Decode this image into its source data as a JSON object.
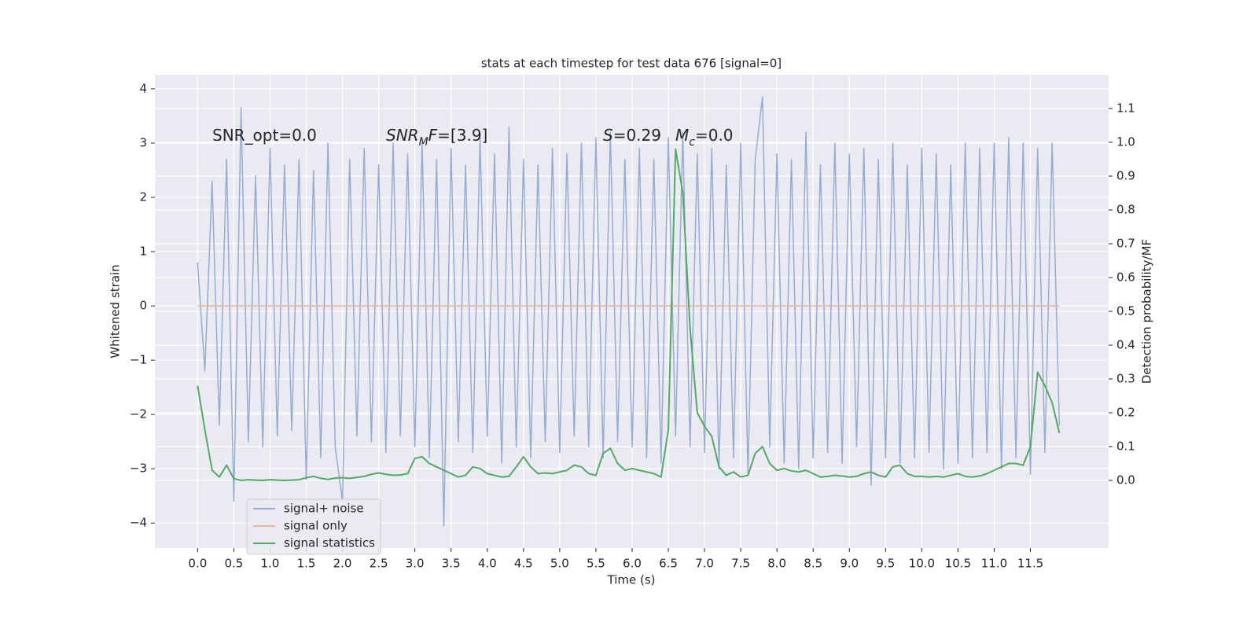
{
  "chart_data": {
    "type": "line",
    "title": "stats at each timestep for test data 676 [signal=0]",
    "x_label": "Time (s)",
    "y_label": "Whitened strain",
    "y2_label": "Detection probability/MF",
    "annotations": [
      [
        {
          "text": "SNR_opt=0.0"
        }
      ],
      [
        {
          "text": "SNR",
          "italic": true
        },
        {
          "text": "M",
          "italic": true,
          "sub": true
        },
        {
          "text": "F",
          "italic": true
        },
        {
          "text": "=[3.9]"
        }
      ],
      [
        {
          "text": "S",
          "italic": true
        },
        {
          "text": "=0.29"
        }
      ],
      [
        {
          "text": "M",
          "italic": true
        },
        {
          "text": "c",
          "italic": true,
          "sub": true
        },
        {
          "text": "=0.0"
        }
      ]
    ],
    "x": [
      0.0,
      0.1,
      0.2,
      0.3,
      0.4,
      0.5,
      0.6,
      0.7,
      0.8,
      0.9,
      1.0,
      1.1,
      1.2,
      1.3,
      1.4,
      1.5,
      1.6,
      1.7,
      1.8,
      1.9,
      2.0,
      2.1,
      2.2,
      2.3,
      2.4,
      2.5,
      2.6,
      2.7,
      2.8,
      2.9,
      3.0,
      3.1,
      3.2,
      3.3,
      3.4,
      3.5,
      3.6,
      3.7,
      3.8,
      3.9,
      4.0,
      4.1,
      4.2,
      4.3,
      4.4,
      4.5,
      4.6,
      4.7,
      4.8,
      4.9,
      5.0,
      5.1,
      5.2,
      5.3,
      5.4,
      5.5,
      5.6,
      5.7,
      5.8,
      5.9,
      6.0,
      6.1,
      6.2,
      6.3,
      6.4,
      6.5,
      6.6,
      6.7,
      6.8,
      6.9,
      7.0,
      7.1,
      7.2,
      7.3,
      7.4,
      7.5,
      7.6,
      7.7,
      7.8,
      7.9,
      8.0,
      8.1,
      8.2,
      8.3,
      8.4,
      8.5,
      8.6,
      8.7,
      8.8,
      8.9,
      9.0,
      9.1,
      9.2,
      9.3,
      9.4,
      9.5,
      9.6,
      9.7,
      9.8,
      9.9,
      10.0,
      10.1,
      10.2,
      10.3,
      10.4,
      10.5,
      10.6,
      10.7,
      10.8,
      10.9,
      11.0,
      11.1,
      11.2,
      11.3,
      11.4,
      11.5,
      11.6,
      11.7,
      11.8,
      11.9
    ],
    "series": [
      {
        "name": "signal+ noise",
        "color": "#9aabd0",
        "values": [
          0.8,
          -1.2,
          2.3,
          -2.2,
          2.7,
          -3.6,
          3.65,
          -2.5,
          2.4,
          -2.6,
          2.9,
          -2.4,
          2.6,
          -2.3,
          2.7,
          -3.2,
          2.5,
          -2.8,
          3.0,
          -2.6,
          -3.6,
          2.7,
          -2.4,
          2.9,
          -2.5,
          2.6,
          -2.7,
          3.0,
          -2.4,
          2.8,
          -2.6,
          3.0,
          -2.8,
          2.7,
          -4.05,
          2.9,
          -2.5,
          2.6,
          -2.7,
          3.1,
          -2.4,
          2.8,
          -2.9,
          3.3,
          -2.6,
          2.7,
          -2.8,
          2.6,
          -2.5,
          2.9,
          -2.7,
          2.8,
          -2.4,
          3.0,
          -2.6,
          3.1,
          -2.8,
          3.2,
          -2.5,
          2.7,
          -2.6,
          2.9,
          -2.8,
          2.7,
          -2.9,
          3.1,
          -2.4,
          3.2,
          -2.6,
          2.8,
          -2.7,
          2.9,
          -3.0,
          2.6,
          -2.8,
          3.0,
          -3.1,
          2.7,
          3.85,
          -2.6,
          2.8,
          -2.9,
          2.7,
          -3.0,
          3.2,
          -2.8,
          2.6,
          -2.7,
          3.0,
          -2.9,
          2.8,
          -2.6,
          2.9,
          -3.3,
          2.7,
          -2.8,
          3.0,
          -2.9,
          2.6,
          -2.8,
          2.9,
          -2.7,
          2.8,
          -3.0,
          2.6,
          -2.9,
          3.0,
          -2.8,
          2.9,
          -2.7,
          3.0,
          -3.0,
          3.1,
          -2.8,
          3.0,
          -3.1,
          2.9,
          -2.7,
          3.0,
          -2.2
        ]
      },
      {
        "name": "signal only",
        "color": "#e9b59b",
        "values": [
          0,
          0,
          0,
          0,
          0,
          0,
          0,
          0,
          0,
          0,
          0,
          0,
          0,
          0,
          0,
          0,
          0,
          0,
          0,
          0,
          0,
          0,
          0,
          0,
          0,
          0,
          0,
          0,
          0,
          0,
          0,
          0,
          0,
          0,
          0,
          0,
          0,
          0,
          0,
          0,
          0,
          0,
          0,
          0,
          0,
          0,
          0,
          0,
          0,
          0,
          0,
          0,
          0,
          0,
          0,
          0,
          0,
          0,
          0,
          0,
          0,
          0,
          0,
          0,
          0,
          0,
          0,
          0,
          0,
          0,
          0,
          0,
          0,
          0,
          0,
          0,
          0,
          0,
          0,
          0,
          0,
          0,
          0,
          0,
          0,
          0,
          0,
          0,
          0,
          0,
          0,
          0,
          0,
          0,
          0,
          0,
          0,
          0,
          0,
          0,
          0,
          0,
          0,
          0,
          0,
          0,
          0,
          0,
          0,
          0,
          0,
          0,
          0,
          0,
          0,
          0,
          0,
          0,
          0,
          0
        ]
      },
      {
        "name": "signal statistics",
        "color": "#55a868",
        "axis": "y2",
        "values": [
          0.28,
          0.15,
          0.03,
          0.01,
          0.045,
          0.005,
          0.0,
          0.002,
          0.001,
          0.0,
          0.002,
          0.001,
          0.0,
          0.001,
          0.002,
          0.008,
          0.012,
          0.006,
          0.003,
          0.007,
          0.008,
          0.006,
          0.009,
          0.012,
          0.018,
          0.022,
          0.018,
          0.015,
          0.016,
          0.02,
          0.065,
          0.07,
          0.05,
          0.04,
          0.03,
          0.02,
          0.01,
          0.015,
          0.04,
          0.035,
          0.02,
          0.015,
          0.01,
          0.012,
          0.04,
          0.07,
          0.04,
          0.02,
          0.022,
          0.02,
          0.025,
          0.03,
          0.045,
          0.04,
          0.02,
          0.015,
          0.08,
          0.095,
          0.05,
          0.03,
          0.035,
          0.03,
          0.025,
          0.02,
          0.01,
          0.15,
          0.98,
          0.85,
          0.45,
          0.2,
          0.16,
          0.13,
          0.04,
          0.015,
          0.025,
          0.01,
          0.015,
          0.08,
          0.1,
          0.05,
          0.03,
          0.035,
          0.028,
          0.025,
          0.03,
          0.02,
          0.01,
          0.012,
          0.015,
          0.013,
          0.01,
          0.012,
          0.02,
          0.025,
          0.015,
          0.01,
          0.04,
          0.045,
          0.02,
          0.012,
          0.012,
          0.01,
          0.012,
          0.01,
          0.015,
          0.02,
          0.012,
          0.01,
          0.013,
          0.02,
          0.03,
          0.04,
          0.05,
          0.05,
          0.045,
          0.1,
          0.32,
          0.28,
          0.23,
          0.14
        ]
      }
    ],
    "xlim": [
      -0.59,
      12.58
    ],
    "xticks": [
      {
        "value": 0,
        "label": "0.0"
      },
      0.5,
      {
        "value": 1,
        "label": "1.0"
      },
      1.5,
      {
        "value": 2,
        "label": "2.0"
      },
      2.5,
      {
        "value": 3,
        "label": "3.0"
      },
      3.5,
      {
        "value": 4,
        "label": "4.0"
      },
      4.5,
      {
        "value": 5,
        "label": "5.0"
      },
      5.5,
      {
        "value": 6,
        "label": "6.0"
      },
      6.5,
      {
        "value": 7,
        "label": "7.0"
      },
      7.5,
      {
        "value": 8,
        "label": "8.0"
      },
      8.5,
      {
        "value": 9,
        "label": "9.0"
      },
      9.5,
      {
        "value": 10,
        "label": "10.0"
      },
      10.5,
      {
        "value": 11,
        "label": "11.0"
      },
      11.5
    ],
    "ylim": [
      -4.46,
      4.26
    ],
    "yticks": [
      {
        "value": -4,
        "label": "−4"
      },
      {
        "value": -3,
        "label": "−3"
      },
      {
        "value": -2,
        "label": "−2"
      },
      {
        "value": -1,
        "label": "−1"
      },
      0,
      1,
      2,
      3,
      4
    ],
    "y2lim": [
      -0.2,
      1.2
    ],
    "y2ticks": [
      {
        "value": 0,
        "label": "0.0"
      },
      0.1,
      0.2,
      0.3,
      0.4,
      0.5,
      0.6,
      0.7,
      0.8,
      0.9,
      {
        "value": 1,
        "label": "1.0"
      },
      1.1
    ],
    "grid": true
  }
}
